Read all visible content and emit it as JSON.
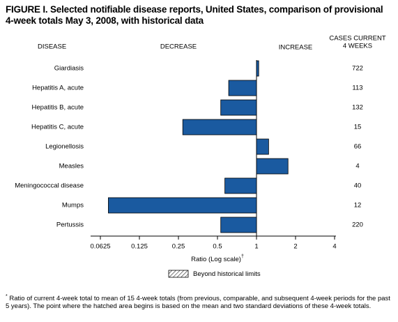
{
  "chart_data": {
    "type": "bar",
    "orientation": "horizontal",
    "title": "FIGURE I. Selected notifiable disease reports, United States, comparison of provisional 4-week totals May 3, 2008, with historical data",
    "headers": {
      "category": "DISEASE",
      "decrease": "DECREASE",
      "increase": "INCREASE"
    },
    "categories": [
      "Giardiasis",
      "Hepatitis A, acute",
      "Hepatitis B, acute",
      "Hepatitis C, acute",
      "Legionellosis",
      "Measles",
      "Meningococcal disease",
      "Mumps",
      "Pertussis"
    ],
    "values": [
      1.04,
      0.61,
      0.53,
      0.27,
      1.24,
      1.75,
      0.57,
      0.072,
      0.53
    ],
    "color": "#1a5aa0",
    "bar_base": 1,
    "cases": {
      "header": [
        "CASES CURRENT",
        "4 WEEKS"
      ],
      "values": [
        722,
        113,
        132,
        15,
        66,
        4,
        40,
        12,
        220
      ]
    },
    "xscale": "log",
    "xlim": [
      0.0625,
      4
    ],
    "xticks": [
      0.0625,
      0.125,
      0.25,
      0.5,
      1,
      2,
      4
    ],
    "xlabel": "Ratio (Log scale)",
    "xlabel_mark": "†",
    "legend": {
      "label": "Beyond historical limits"
    },
    "footnote": {
      "mark": "*",
      "text": "Ratio of current 4-week total to mean of 15 4-week totals (from previous, comparable, and subsequent 4-week periods for the past 5 years). The point where the hatched area begins is based on the mean and two standard deviations of these 4-week totals."
    }
  }
}
